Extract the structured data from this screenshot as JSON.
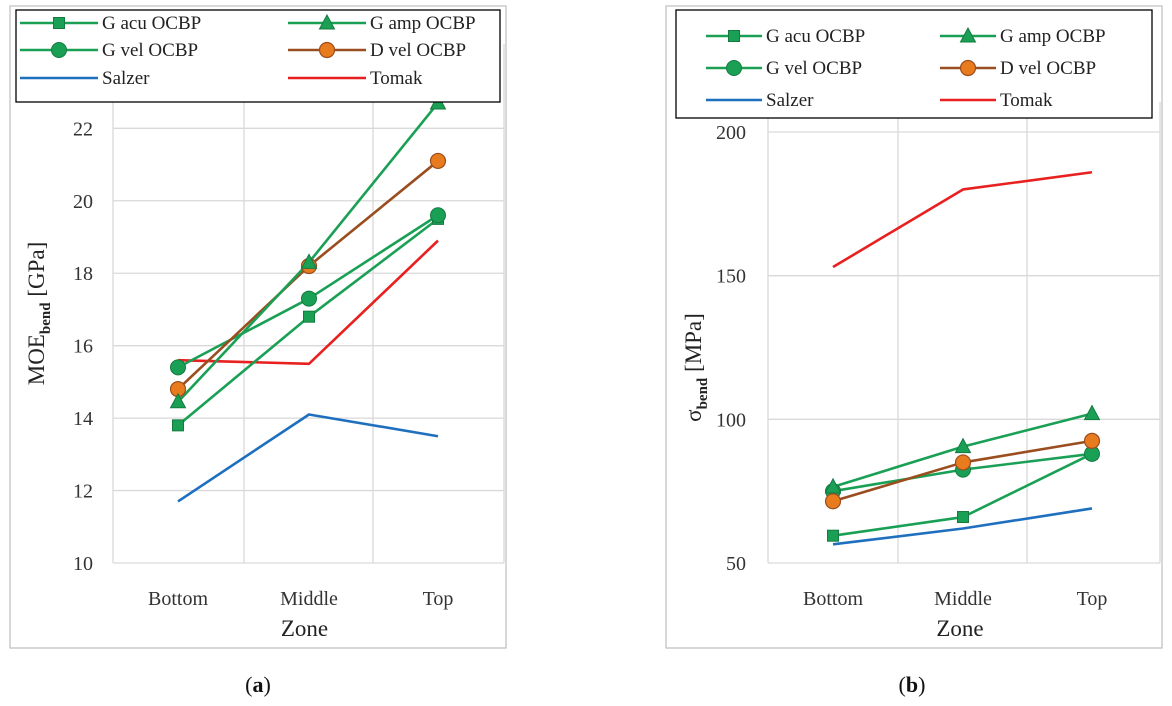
{
  "chart_data": [
    {
      "type": "line",
      "id": "a",
      "caption": "(a)",
      "xlabel": "Zone",
      "ylabel_main": "MOE",
      "ylabel_sub": "bend",
      "ylabel_unit": " [GPa]",
      "categories": [
        "Bottom",
        "Middle",
        "Top"
      ],
      "ylim": [
        10,
        23.5
      ],
      "yticks": [
        10,
        12,
        14,
        16,
        18,
        20,
        22
      ],
      "legend_position": "top",
      "series": [
        {
          "name": "G acu OCBP",
          "color": "#1aa055",
          "marker": "square",
          "values": [
            13.8,
            16.8,
            19.5
          ]
        },
        {
          "name": "G amp OCBP",
          "color": "#1aa055",
          "marker": "triangle",
          "values": [
            14.45,
            18.3,
            22.7
          ]
        },
        {
          "name": "G vel OCBP",
          "color": "#1aa055",
          "marker": "circle",
          "values": [
            15.4,
            17.3,
            19.6
          ]
        },
        {
          "name": "D vel OCBP",
          "color": "#9a4d1e",
          "marker": "circle-orange",
          "values": [
            14.8,
            18.2,
            21.1
          ]
        },
        {
          "name": "Salzer",
          "color": "#1f6fbf",
          "marker": "none",
          "values": [
            11.7,
            14.1,
            13.5
          ]
        },
        {
          "name": "Tomak",
          "color": "#e8201f",
          "marker": "none",
          "values": [
            15.6,
            15.5,
            18.9
          ]
        }
      ]
    },
    {
      "type": "line",
      "id": "b",
      "caption": "(b)",
      "xlabel": "Zone",
      "ylabel_main": "σ",
      "ylabel_sub": "bend",
      "ylabel_unit": " [MPa]",
      "categories": [
        "Bottom",
        "Middle",
        "Top"
      ],
      "ylim": [
        50,
        200
      ],
      "yticks": [
        50,
        100,
        150,
        200
      ],
      "legend_position": "top",
      "series": [
        {
          "name": "G acu OCBP",
          "color": "#1aa055",
          "marker": "square",
          "values": [
            59.5,
            66,
            88
          ]
        },
        {
          "name": "G amp OCBP",
          "color": "#1aa055",
          "marker": "triangle",
          "values": [
            76.5,
            90.5,
            102
          ]
        },
        {
          "name": "G vel OCBP",
          "color": "#1aa055",
          "marker": "circle",
          "values": [
            75,
            82.5,
            88
          ]
        },
        {
          "name": "D vel OCBP",
          "color": "#9a4d1e",
          "marker": "circle-orange",
          "values": [
            71.5,
            85,
            92.5
          ]
        },
        {
          "name": "Salzer",
          "color": "#1f6fbf",
          "marker": "none",
          "values": [
            56.5,
            62,
            69
          ]
        },
        {
          "name": "Tomak",
          "color": "#e8201f",
          "marker": "none",
          "values": [
            153,
            180,
            186
          ]
        }
      ]
    }
  ],
  "colors": {
    "marker_green_fill": "#1aa055",
    "marker_orange_fill": "#e87b1e",
    "marker_orange_stroke": "#9a4d1e"
  }
}
